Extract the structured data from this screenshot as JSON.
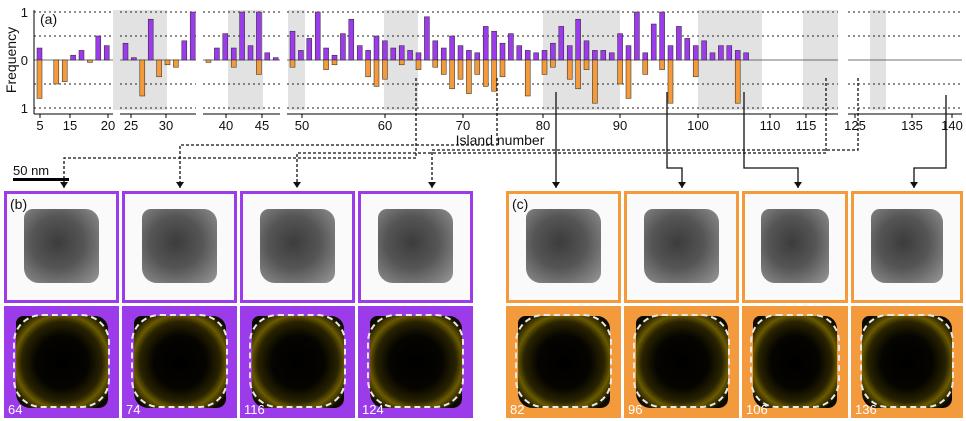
{
  "panel_a_label": "(a)",
  "panel_b_label": "(b)",
  "panel_c_label": "(c)",
  "scale_bar": "50 nm",
  "colors": {
    "purple": "#9b3bea",
    "orange": "#f29a3c",
    "shade": "#e2e2e2"
  },
  "chart_data": {
    "type": "bar",
    "ylabel": "Frequency",
    "xlabel": "Island number",
    "ylim": [
      -1,
      1
    ],
    "yticks": [
      "1",
      "0",
      "1"
    ],
    "xticks": [
      5,
      15,
      20,
      25,
      30,
      40,
      45,
      50,
      60,
      70,
      80,
      90,
      100,
      110,
      115,
      125,
      135,
      140
    ],
    "groups": [
      {
        "start": 4,
        "shaded": [
          4
        ]
      },
      {
        "start": 13,
        "shaded": []
      },
      {
        "start": 20,
        "shaded": []
      }
    ],
    "series": [
      {
        "name": "",
        "color": "#9b3bea",
        "values": [
          0.25,
          0,
          0,
          0,
          0.1,
          0.2,
          0,
          0.5,
          0.3,
          0.35,
          0.05,
          0,
          0.85,
          0,
          0,
          0,
          0.4,
          1.0,
          0,
          0.25,
          0.55,
          0.25,
          1.0,
          0.3,
          1.0,
          0.15,
          0.05,
          0.6,
          0.2,
          0.45,
          1.0,
          0.25,
          0.1,
          0.55,
          0.85,
          0.3,
          0.2,
          0.5,
          0.4,
          0.25,
          0.3,
          0.2,
          0.15,
          0.9,
          0.4,
          0.25,
          0.5,
          0.3,
          0.2,
          0.15,
          0.7,
          0.6,
          0.35,
          0.55,
          0.3,
          0.2,
          0.15,
          0.2,
          0.35,
          0.7,
          0.3,
          0.85,
          0.4,
          0.2,
          0.2,
          0.15,
          0.55,
          0.3,
          1.0,
          0.15,
          0.75,
          1.0,
          0.3,
          0.7,
          0.45,
          0.3,
          0.4,
          0.15,
          0.3,
          0.3,
          0.2,
          0.15
        ]
      },
      {
        "name": "",
        "color": "#f29a3c",
        "values": [
          0.8,
          0,
          0.5,
          0.45,
          0,
          0,
          0.05,
          0,
          0,
          0,
          0,
          0.75,
          0,
          0.35,
          0.1,
          0.15,
          0,
          0,
          0.05,
          0,
          0,
          0.15,
          0,
          0,
          0.3,
          0,
          0,
          0.15,
          0,
          0,
          0,
          0.2,
          0.1,
          0,
          0,
          0,
          0.35,
          0.55,
          0.4,
          0,
          0.1,
          0,
          0.2,
          0,
          0.15,
          0.3,
          0.6,
          0.4,
          0.7,
          0.3,
          0.55,
          0.65,
          0.35,
          0,
          0,
          0.75,
          0,
          0.3,
          0.15,
          0,
          0.4,
          0.6,
          0.2,
          0.9,
          0,
          0,
          0.5,
          0.8,
          0,
          0.3,
          0,
          0.2,
          0.9,
          0,
          0,
          0.35,
          0,
          0,
          0,
          0,
          0.9,
          0
        ]
      }
    ]
  },
  "islands_b": [
    {
      "label": "64"
    },
    {
      "label": "74"
    },
    {
      "label": "116"
    },
    {
      "label": "124"
    }
  ],
  "islands_c": [
    {
      "label": "82"
    },
    {
      "label": "96"
    },
    {
      "label": "106"
    },
    {
      "label": "136"
    }
  ]
}
